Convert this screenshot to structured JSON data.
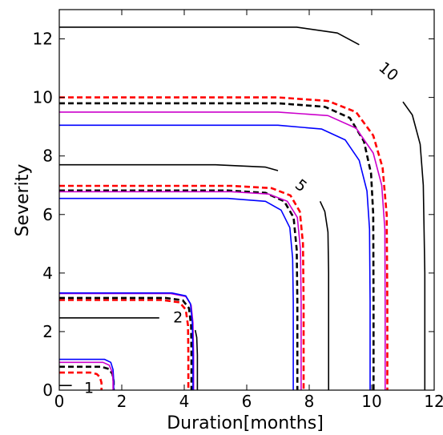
{
  "chart_data": {
    "type": "line",
    "title": "",
    "xlabel": "Duration[months]",
    "ylabel": "Severity",
    "xlim": [
      0,
      12
    ],
    "ylim": [
      0,
      13
    ],
    "x_ticks": [
      0,
      2,
      4,
      6,
      8,
      10,
      12
    ],
    "y_ticks": [
      0,
      2,
      4,
      6,
      8,
      10,
      12
    ],
    "grid": false,
    "legend": "none",
    "contour_labels": [
      {
        "text": "1",
        "x": 0.95,
        "y": 0.1
      },
      {
        "text": "2",
        "x": 3.8,
        "y": 2.5
      },
      {
        "text": "5",
        "x": 7.75,
        "y": 7.0
      },
      {
        "text": "10",
        "x": 10.55,
        "y": 10.9
      }
    ],
    "series": [
      {
        "style": "solid-black",
        "color": "#000000",
        "level": "1",
        "points": [
          [
            0.4,
            0.16
          ],
          [
            0.0,
            0.16
          ]
        ]
      },
      {
        "style": "solid-black",
        "color": "#000000",
        "level": "2",
        "points": [
          [
            0,
            2.47
          ],
          [
            3.2,
            2.47
          ]
        ]
      },
      {
        "style": "solid-black",
        "color": "#000000",
        "level": "2",
        "points": [
          [
            4.35,
            2.05
          ],
          [
            4.4,
            1.8
          ],
          [
            4.42,
            1.2
          ],
          [
            4.42,
            0
          ]
        ]
      },
      {
        "style": "solid-black",
        "color": "#000000",
        "level": "5",
        "points": [
          [
            0,
            7.7
          ],
          [
            5.0,
            7.7
          ],
          [
            6.6,
            7.62
          ],
          [
            7.0,
            7.5
          ]
        ]
      },
      {
        "style": "solid-black",
        "color": "#000000",
        "level": "5",
        "points": [
          [
            8.35,
            6.45
          ],
          [
            8.5,
            6.1
          ],
          [
            8.6,
            5.4
          ],
          [
            8.62,
            4.0
          ],
          [
            8.62,
            0
          ]
        ]
      },
      {
        "style": "solid-black",
        "color": "#000000",
        "level": "10",
        "points": [
          [
            0,
            12.4
          ],
          [
            7.6,
            12.4
          ],
          [
            8.9,
            12.2
          ],
          [
            9.6,
            11.8
          ]
        ]
      },
      {
        "style": "solid-black",
        "color": "#000000",
        "level": "10",
        "points": [
          [
            11.0,
            9.85
          ],
          [
            11.3,
            9.4
          ],
          [
            11.55,
            8.4
          ],
          [
            11.65,
            7.0
          ],
          [
            11.7,
            4.0
          ],
          [
            11.7,
            0
          ]
        ]
      },
      {
        "style": "dashed-red",
        "color": "#ff0000",
        "points": [
          [
            0,
            0.6
          ],
          [
            1.0,
            0.6
          ],
          [
            1.2,
            0.55
          ],
          [
            1.3,
            0.45
          ],
          [
            1.35,
            0.25
          ],
          [
            1.35,
            0
          ]
        ]
      },
      {
        "style": "dashed-black",
        "color": "#000000",
        "points": [
          [
            0,
            0.8
          ],
          [
            1.35,
            0.8
          ],
          [
            1.6,
            0.72
          ],
          [
            1.7,
            0.55
          ],
          [
            1.74,
            0.3
          ],
          [
            1.74,
            0
          ]
        ]
      },
      {
        "style": "solid-blue",
        "color": "#0000ff",
        "points": [
          [
            0,
            1.05
          ],
          [
            1.45,
            1.05
          ],
          [
            1.65,
            0.95
          ],
          [
            1.72,
            0.7
          ],
          [
            1.74,
            0.35
          ],
          [
            1.74,
            0
          ]
        ]
      },
      {
        "style": "solid-magenta",
        "color": "#cc00cc",
        "points": [
          [
            0,
            0.95
          ],
          [
            1.4,
            0.95
          ],
          [
            1.6,
            0.85
          ],
          [
            1.7,
            0.6
          ],
          [
            1.72,
            0.3
          ],
          [
            1.72,
            0
          ]
        ]
      },
      {
        "style": "dashed-red",
        "color": "#ff0000",
        "points": [
          [
            0,
            3.08
          ],
          [
            3.3,
            3.08
          ],
          [
            3.85,
            3.0
          ],
          [
            4.05,
            2.75
          ],
          [
            4.12,
            2.2
          ],
          [
            4.13,
            1.2
          ],
          [
            4.13,
            0
          ]
        ]
      },
      {
        "style": "dashed-black",
        "color": "#000000",
        "points": [
          [
            0,
            3.15
          ],
          [
            3.4,
            3.15
          ],
          [
            3.95,
            3.07
          ],
          [
            4.15,
            2.8
          ],
          [
            4.22,
            2.2
          ],
          [
            4.23,
            1.2
          ],
          [
            4.23,
            0
          ]
        ]
      },
      {
        "style": "solid-magenta",
        "color": "#cc00cc",
        "points": [
          [
            0,
            3.3
          ],
          [
            3.55,
            3.3
          ],
          [
            4.05,
            3.2
          ],
          [
            4.22,
            2.9
          ],
          [
            4.28,
            2.3
          ],
          [
            4.3,
            1.2
          ],
          [
            4.3,
            0
          ]
        ]
      },
      {
        "style": "solid-blue",
        "color": "#0000ff",
        "points": [
          [
            0,
            3.32
          ],
          [
            3.6,
            3.32
          ],
          [
            4.05,
            3.22
          ],
          [
            4.2,
            2.95
          ],
          [
            4.26,
            2.3
          ],
          [
            4.28,
            1.2
          ],
          [
            4.28,
            0
          ]
        ]
      },
      {
        "style": "dashed-red",
        "color": "#ff0000",
        "points": [
          [
            0,
            6.98
          ],
          [
            5.5,
            6.98
          ],
          [
            6.8,
            6.9
          ],
          [
            7.4,
            6.65
          ],
          [
            7.7,
            6.1
          ],
          [
            7.8,
            5.0
          ],
          [
            7.82,
            3.0
          ],
          [
            7.82,
            0
          ]
        ]
      },
      {
        "style": "dashed-black",
        "color": "#000000",
        "points": [
          [
            0,
            6.82
          ],
          [
            5.4,
            6.82
          ],
          [
            6.6,
            6.74
          ],
          [
            7.2,
            6.45
          ],
          [
            7.5,
            5.9
          ],
          [
            7.6,
            4.8
          ],
          [
            7.62,
            3.0
          ],
          [
            7.62,
            0
          ]
        ]
      },
      {
        "style": "solid-magenta",
        "color": "#cc00cc",
        "points": [
          [
            0,
            6.78
          ],
          [
            5.5,
            6.78
          ],
          [
            6.7,
            6.7
          ],
          [
            7.3,
            6.45
          ],
          [
            7.62,
            5.9
          ],
          [
            7.72,
            4.8
          ],
          [
            7.74,
            3.0
          ],
          [
            7.74,
            0
          ]
        ]
      },
      {
        "style": "solid-blue",
        "color": "#0000ff",
        "points": [
          [
            0,
            6.55
          ],
          [
            5.4,
            6.55
          ],
          [
            6.6,
            6.45
          ],
          [
            7.1,
            6.15
          ],
          [
            7.38,
            5.55
          ],
          [
            7.47,
            4.5
          ],
          [
            7.49,
            3.0
          ],
          [
            7.49,
            0
          ]
        ]
      },
      {
        "style": "dashed-red",
        "color": "#ff0000",
        "points": [
          [
            0,
            10.0
          ],
          [
            7.0,
            10.0
          ],
          [
            8.6,
            9.88
          ],
          [
            9.5,
            9.5
          ],
          [
            10.05,
            8.7
          ],
          [
            10.35,
            7.6
          ],
          [
            10.48,
            6.0
          ],
          [
            10.5,
            3.0
          ],
          [
            10.5,
            0
          ]
        ]
      },
      {
        "style": "dashed-black",
        "color": "#000000",
        "points": [
          [
            0,
            9.8
          ],
          [
            7.0,
            9.8
          ],
          [
            8.5,
            9.68
          ],
          [
            9.3,
            9.3
          ],
          [
            9.75,
            8.5
          ],
          [
            9.98,
            7.4
          ],
          [
            10.05,
            6.0
          ],
          [
            10.06,
            3.0
          ],
          [
            10.06,
            0
          ]
        ]
      },
      {
        "style": "solid-magenta",
        "color": "#cc00cc",
        "points": [
          [
            0,
            9.5
          ],
          [
            7.0,
            9.5
          ],
          [
            8.6,
            9.38
          ],
          [
            9.5,
            8.95
          ],
          [
            10.05,
            8.1
          ],
          [
            10.32,
            7.0
          ],
          [
            10.42,
            5.5
          ],
          [
            10.43,
            3.0
          ],
          [
            10.43,
            0
          ]
        ]
      },
      {
        "style": "solid-blue",
        "color": "#0000ff",
        "points": [
          [
            0,
            9.05
          ],
          [
            7.0,
            9.05
          ],
          [
            8.4,
            8.92
          ],
          [
            9.15,
            8.55
          ],
          [
            9.6,
            7.85
          ],
          [
            9.85,
            6.8
          ],
          [
            9.93,
            5.5
          ],
          [
            9.95,
            3.0
          ],
          [
            9.95,
            0
          ]
        ]
      }
    ]
  }
}
